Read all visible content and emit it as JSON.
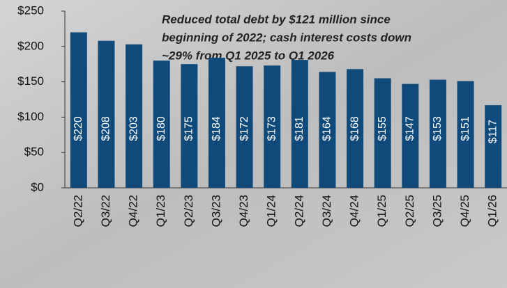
{
  "chart_data": {
    "type": "bar",
    "annotation": [
      "Reduced total debt by $121 million since",
      "beginning of 2022; cash interest costs down",
      "~29% from Q1 2025 to Q1 2026"
    ],
    "categories": [
      "Q2/22",
      "Q3/22",
      "Q4/22",
      "Q1/23",
      "Q2/23",
      "Q3/23",
      "Q4/23",
      "Q1/24",
      "Q2/24",
      "Q3/24",
      "Q4/24",
      "Q1/25",
      "Q2/25",
      "Q3/25",
      "Q4/25",
      "Q1/26"
    ],
    "values": [
      220,
      208,
      203,
      180,
      175,
      184,
      172,
      173,
      181,
      164,
      168,
      155,
      147,
      153,
      151,
      117
    ],
    "value_labels": [
      "$220",
      "$208",
      "$203",
      "$180",
      "$175",
      "$184",
      "$172",
      "$173",
      "$181",
      "$164",
      "$168",
      "$155",
      "$147",
      "$153",
      "$151",
      "$117"
    ],
    "color": "#0f4a7a",
    "ylim": [
      0,
      250
    ],
    "yticks": [
      {
        "value": 0,
        "label": "$0"
      },
      {
        "value": 50,
        "label": "$50"
      },
      {
        "value": 100,
        "label": "$100"
      },
      {
        "value": 150,
        "label": "$150"
      },
      {
        "value": 200,
        "label": "$200"
      },
      {
        "value": 250,
        "label": "$250"
      }
    ],
    "grid": false
  }
}
